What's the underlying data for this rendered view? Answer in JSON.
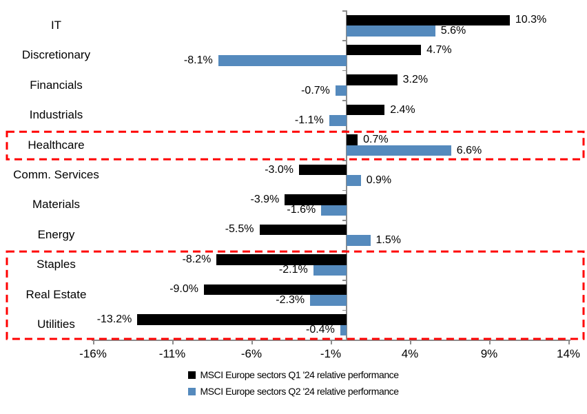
{
  "chart_data": {
    "type": "bar",
    "orientation": "horizontal",
    "title": "",
    "xlabel": "",
    "ylabel": "",
    "grid": false,
    "legend_position": "bottom",
    "categories": [
      "IT",
      "Discretionary",
      "Financials",
      "Industrials",
      "Healthcare",
      "Comm. Services",
      "Materials",
      "Energy",
      "Staples",
      "Real Estate",
      "Utilities"
    ],
    "series": [
      {
        "name": "MSCI Europe sectors Q1 '24 relative performance",
        "color": "#000000",
        "values": [
          10.3,
          4.7,
          3.2,
          2.4,
          0.7,
          -3.0,
          -3.9,
          -5.5,
          -8.2,
          -9.0,
          -13.2
        ]
      },
      {
        "name": "MSCI Europe sectors Q2 '24 relative performance",
        "color": "#558ABD",
        "values": [
          5.6,
          -8.1,
          -0.7,
          -1.1,
          6.6,
          0.9,
          -1.6,
          1.5,
          -2.1,
          -2.3,
          -0.4
        ]
      }
    ],
    "value_label_format": "one-decimal-percent",
    "x_axis": {
      "tick_labels": [
        "-16%",
        "-11%",
        "-6%",
        "-1%",
        "4%",
        "9%",
        "14%"
      ],
      "tick_values": [
        -16,
        -11,
        -6,
        -1,
        4,
        9,
        14
      ],
      "min": -16.1,
      "max": 14.15
    },
    "highlights": [
      {
        "type": "dashed-box",
        "color": "#FF0000",
        "rows": [
          "Healthcare"
        ]
      },
      {
        "type": "dashed-box",
        "color": "#FF0000",
        "rows": [
          "Staples",
          "Real Estate",
          "Utilities"
        ]
      }
    ],
    "axis_color": "#8C8C8C",
    "text_color": "#000000"
  }
}
